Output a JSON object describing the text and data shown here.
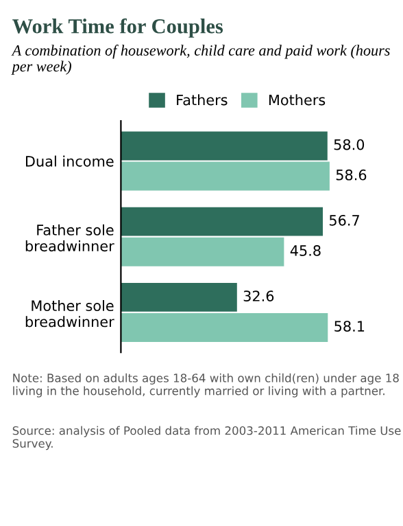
{
  "chart_data": {
    "type": "bar",
    "orientation": "horizontal",
    "title": "Work Time for Couples",
    "subtitle": "A combination of housework, child care and paid work (hours per week)",
    "categories": [
      "Dual income",
      "Father sole\nbreadwinner",
      "Mother sole\nbreadwinner"
    ],
    "series": [
      {
        "name": "Fathers",
        "color": "#2e6e5c",
        "values": [
          58.0,
          56.7,
          32.6
        ],
        "value_labels": [
          "58.0",
          "56.7",
          "32.6"
        ]
      },
      {
        "name": "Mothers",
        "color": "#80c6b0",
        "values": [
          58.6,
          45.8,
          58.1
        ],
        "value_labels": [
          "58.6",
          "45.8",
          "58.1"
        ]
      }
    ],
    "legend": "top",
    "grid": false,
    "annotations": [
      "Note: Based on adults ages 18-64 with own child(ren) under age 18 living in the household, currently married or living with a partner.",
      "Source: analysis of Pooled data from 2003-2011 American Time Use Survey."
    ]
  }
}
